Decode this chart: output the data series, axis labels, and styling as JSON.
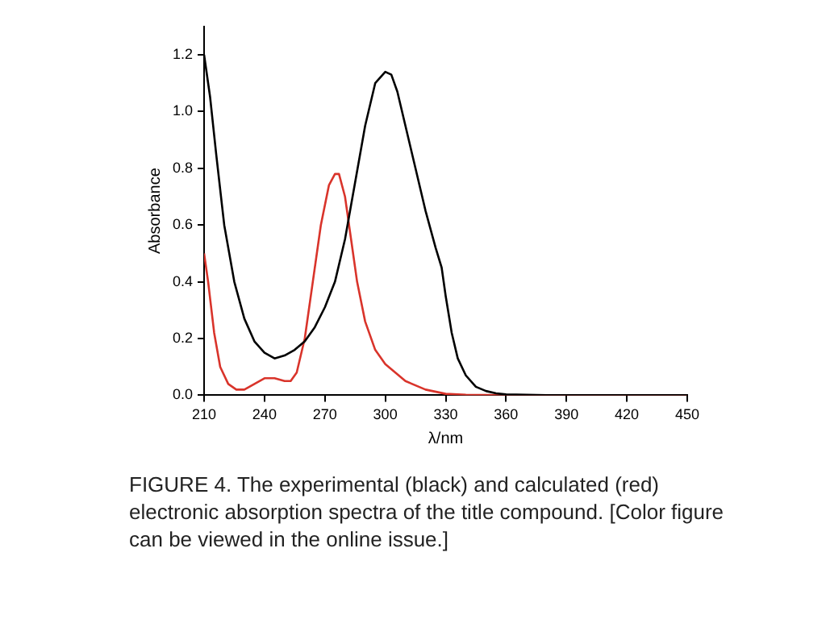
{
  "chart_data": {
    "type": "line",
    "xlabel": "λ/nm",
    "ylabel": "Absorbance",
    "xlim": [
      210,
      450
    ],
    "xticks": [
      210,
      240,
      270,
      300,
      330,
      360,
      390,
      420,
      450
    ],
    "ylim": [
      0,
      1.3
    ],
    "yticks": [
      {
        "value": 0,
        "label": "0.0"
      },
      0.2,
      0.4,
      0.6,
      0.8,
      {
        "value": 1,
        "label": "1.0"
      },
      1.2
    ],
    "grid": false,
    "legend": false,
    "marker": "none",
    "line_style": "solid",
    "series": [
      {
        "color": "#000000",
        "x": [
          210,
          213,
          216,
          220,
          225,
          230,
          235,
          240,
          245,
          250,
          255,
          260,
          265,
          270,
          275,
          280,
          285,
          290,
          295,
          300,
          303,
          306,
          310,
          315,
          320,
          325,
          328,
          330,
          333,
          336,
          340,
          345,
          350,
          355,
          360,
          380,
          450
        ],
        "values": [
          1.2,
          1.05,
          0.85,
          0.6,
          0.4,
          0.27,
          0.19,
          0.15,
          0.13,
          0.14,
          0.16,
          0.19,
          0.24,
          0.31,
          0.4,
          0.55,
          0.75,
          0.95,
          1.1,
          1.14,
          1.13,
          1.07,
          0.95,
          0.8,
          0.65,
          0.52,
          0.45,
          0.35,
          0.22,
          0.13,
          0.07,
          0.03,
          0.015,
          0.007,
          0.003,
          0,
          0
        ]
      },
      {
        "color": "#d9342b",
        "x": [
          210,
          212,
          215,
          218,
          222,
          226,
          230,
          235,
          240,
          245,
          250,
          253,
          256,
          260,
          264,
          268,
          272,
          275,
          277,
          280,
          283,
          286,
          290,
          295,
          300,
          305,
          310,
          320,
          330,
          340,
          360,
          450
        ],
        "values": [
          0.5,
          0.4,
          0.22,
          0.1,
          0.04,
          0.02,
          0.02,
          0.04,
          0.06,
          0.06,
          0.05,
          0.05,
          0.08,
          0.2,
          0.4,
          0.6,
          0.74,
          0.78,
          0.78,
          0.7,
          0.55,
          0.4,
          0.26,
          0.16,
          0.11,
          0.08,
          0.05,
          0.02,
          0.005,
          0.002,
          0,
          0
        ]
      }
    ],
    "annotations": [
      "FIGURE 4. The experimental (black) and calculated (red) electronic absorption spectra of the title compound. [Color figure can be viewed in the online issue.]"
    ]
  }
}
